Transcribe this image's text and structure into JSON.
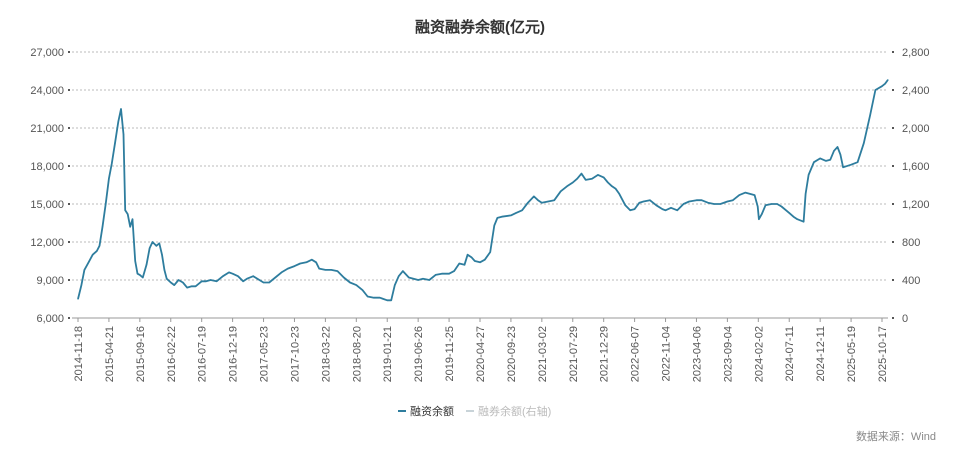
{
  "chart_data": {
    "type": "line",
    "title": "融资融券余额(亿元)",
    "source": "数据来源：Wind",
    "grid": true,
    "legend_position": "bottom",
    "x_ticks": [
      "2014-11-18",
      "2015-04-21",
      "2015-09-16",
      "2016-02-22",
      "2016-07-19",
      "2016-12-19",
      "2017-05-23",
      "2017-10-23",
      "2018-03-22",
      "2018-08-20",
      "2019-01-21",
      "2019-06-26",
      "2019-11-25",
      "2020-04-27",
      "2020-09-23",
      "2021-03-02",
      "2021-07-29",
      "2021-12-29",
      "2022-06-07",
      "2022-11-04",
      "2023-04-06",
      "2023-09-04",
      "2024-02-02",
      "2024-07-11",
      "2024-12-11",
      "2025-05-19",
      "2025-10-17"
    ],
    "y_left": {
      "ylim": [
        6000,
        27000
      ],
      "ticks": [
        "6,000",
        "9,000",
        "12,000",
        "15,000",
        "18,000",
        "21,000",
        "24,000",
        "27,000"
      ]
    },
    "y_right": {
      "ylim": [
        0,
        2800
      ],
      "ticks": [
        "0",
        "400",
        "800",
        "1,200",
        "1,600",
        "2,000",
        "2,400",
        "2,800"
      ]
    },
    "series": [
      {
        "name": "融资余额",
        "axis": "left",
        "color": "#2e7d9e",
        "visible": true,
        "values": [
          [
            "2014-11-18",
            7500
          ],
          [
            "2014-12-05",
            8600
          ],
          [
            "2014-12-20",
            9800
          ],
          [
            "2015-01-10",
            10400
          ],
          [
            "2015-01-30",
            11000
          ],
          [
            "2015-02-20",
            11300
          ],
          [
            "2015-03-05",
            11700
          ],
          [
            "2015-03-20",
            13200
          ],
          [
            "2015-04-05",
            15000
          ],
          [
            "2015-04-21",
            17000
          ],
          [
            "2015-05-05",
            18200
          ],
          [
            "2015-05-20",
            19800
          ],
          [
            "2015-06-05",
            21500
          ],
          [
            "2015-06-18",
            22500
          ],
          [
            "2015-06-30",
            20500
          ],
          [
            "2015-07-08",
            14500
          ],
          [
            "2015-07-20",
            14200
          ],
          [
            "2015-08-01",
            13200
          ],
          [
            "2015-08-12",
            13800
          ],
          [
            "2015-08-25",
            10500
          ],
          [
            "2015-09-05",
            9500
          ],
          [
            "2015-09-16",
            9400
          ],
          [
            "2015-10-01",
            9200
          ],
          [
            "2015-10-20",
            10200
          ],
          [
            "2015-11-05",
            11500
          ],
          [
            "2015-11-20",
            12000
          ],
          [
            "2015-12-10",
            11700
          ],
          [
            "2015-12-25",
            11900
          ],
          [
            "2016-01-08",
            11000
          ],
          [
            "2016-01-20",
            9800
          ],
          [
            "2016-02-01",
            9100
          ],
          [
            "2016-02-22",
            8800
          ],
          [
            "2016-03-10",
            8600
          ],
          [
            "2016-03-30",
            9000
          ],
          [
            "2016-04-20",
            8800
          ],
          [
            "2016-05-10",
            8400
          ],
          [
            "2016-06-01",
            8500
          ],
          [
            "2016-06-20",
            8500
          ],
          [
            "2016-07-19",
            8900
          ],
          [
            "2016-08-10",
            8900
          ],
          [
            "2016-09-01",
            9000
          ],
          [
            "2016-10-01",
            8900
          ],
          [
            "2016-11-01",
            9300
          ],
          [
            "2016-12-01",
            9600
          ],
          [
            "2016-12-19",
            9500
          ],
          [
            "2017-01-15",
            9300
          ],
          [
            "2017-02-10",
            8900
          ],
          [
            "2017-03-01",
            9100
          ],
          [
            "2017-04-01",
            9300
          ],
          [
            "2017-05-23",
            8800
          ],
          [
            "2017-06-20",
            8800
          ],
          [
            "2017-07-20",
            9200
          ],
          [
            "2017-08-20",
            9600
          ],
          [
            "2017-09-20",
            9900
          ],
          [
            "2017-10-23",
            10100
          ],
          [
            "2017-11-20",
            10300
          ],
          [
            "2017-12-20",
            10400
          ],
          [
            "2018-01-15",
            10600
          ],
          [
            "2018-02-05",
            10400
          ],
          [
            "2018-02-20",
            9900
          ],
          [
            "2018-03-22",
            9800
          ],
          [
            "2018-04-20",
            9800
          ],
          [
            "2018-05-20",
            9700
          ],
          [
            "2018-06-20",
            9200
          ],
          [
            "2018-07-20",
            8800
          ],
          [
            "2018-08-20",
            8600
          ],
          [
            "2018-09-20",
            8200
          ],
          [
            "2018-10-15",
            7700
          ],
          [
            "2018-11-15",
            7600
          ],
          [
            "2018-12-15",
            7600
          ],
          [
            "2019-01-21",
            7400
          ],
          [
            "2019-02-10",
            7400
          ],
          [
            "2019-02-28",
            8600
          ],
          [
            "2019-03-20",
            9300
          ],
          [
            "2019-04-10",
            9700
          ],
          [
            "2019-05-10",
            9200
          ],
          [
            "2019-06-26",
            9000
          ],
          [
            "2019-07-20",
            9100
          ],
          [
            "2019-08-20",
            9000
          ],
          [
            "2019-09-20",
            9400
          ],
          [
            "2019-10-20",
            9500
          ],
          [
            "2019-11-25",
            9500
          ],
          [
            "2019-12-20",
            9700
          ],
          [
            "2020-01-15",
            10300
          ],
          [
            "2020-02-10",
            10200
          ],
          [
            "2020-02-25",
            11000
          ],
          [
            "2020-03-15",
            10800
          ],
          [
            "2020-04-01",
            10500
          ],
          [
            "2020-04-27",
            10400
          ],
          [
            "2020-05-20",
            10600
          ],
          [
            "2020-06-15",
            11200
          ],
          [
            "2020-07-05",
            13300
          ],
          [
            "2020-07-20",
            13900
          ],
          [
            "2020-08-10",
            14000
          ],
          [
            "2020-09-23",
            14100
          ],
          [
            "2020-10-20",
            14300
          ],
          [
            "2020-11-20",
            14500
          ],
          [
            "2020-12-20",
            15100
          ],
          [
            "2021-01-20",
            15600
          ],
          [
            "2021-02-10",
            15300
          ],
          [
            "2021-03-02",
            15100
          ],
          [
            "2021-04-01",
            15200
          ],
          [
            "2021-05-01",
            15300
          ],
          [
            "2021-06-01",
            16000
          ],
          [
            "2021-07-01",
            16400
          ],
          [
            "2021-07-29",
            16700
          ],
          [
            "2021-08-20",
            17000
          ],
          [
            "2021-09-10",
            17400
          ],
          [
            "2021-10-01",
            16900
          ],
          [
            "2021-11-01",
            17000
          ],
          [
            "2021-12-01",
            17300
          ],
          [
            "2021-12-29",
            17100
          ],
          [
            "2022-01-20",
            16700
          ],
          [
            "2022-02-10",
            16400
          ],
          [
            "2022-03-01",
            16200
          ],
          [
            "2022-03-20",
            15800
          ],
          [
            "2022-04-20",
            14900
          ],
          [
            "2022-05-15",
            14500
          ],
          [
            "2022-06-07",
            14600
          ],
          [
            "2022-06-30",
            15100
          ],
          [
            "2022-07-20",
            15200
          ],
          [
            "2022-08-20",
            15300
          ],
          [
            "2022-09-20",
            14900
          ],
          [
            "2022-10-20",
            14600
          ],
          [
            "2022-11-04",
            14500
          ],
          [
            "2022-12-01",
            14700
          ],
          [
            "2023-01-01",
            14500
          ],
          [
            "2023-02-01",
            15000
          ],
          [
            "2023-03-01",
            15200
          ],
          [
            "2023-04-06",
            15300
          ],
          [
            "2023-05-01",
            15300
          ],
          [
            "2023-06-01",
            15100
          ],
          [
            "2023-07-01",
            15000
          ],
          [
            "2023-08-01",
            15000
          ],
          [
            "2023-09-04",
            15200
          ],
          [
            "2023-10-01",
            15300
          ],
          [
            "2023-11-01",
            15700
          ],
          [
            "2023-12-01",
            15900
          ],
          [
            "2024-01-15",
            15700
          ],
          [
            "2024-01-30",
            14800
          ],
          [
            "2024-02-05",
            13800
          ],
          [
            "2024-02-20",
            14200
          ],
          [
            "2024-03-10",
            14900
          ],
          [
            "2024-04-10",
            15000
          ],
          [
            "2024-05-10",
            15000
          ],
          [
            "2024-06-01",
            14800
          ],
          [
            "2024-07-11",
            14300
          ],
          [
            "2024-08-01",
            14000
          ],
          [
            "2024-08-20",
            13800
          ],
          [
            "2024-09-20",
            13600
          ],
          [
            "2024-09-30",
            15800
          ],
          [
            "2024-10-15",
            17300
          ],
          [
            "2024-11-10",
            18300
          ],
          [
            "2024-12-11",
            18600
          ],
          [
            "2025-01-10",
            18400
          ],
          [
            "2025-02-01",
            18500
          ],
          [
            "2025-02-20",
            19200
          ],
          [
            "2025-03-10",
            19500
          ],
          [
            "2025-03-25",
            18900
          ],
          [
            "2025-04-08",
            17900
          ],
          [
            "2025-05-19",
            18100
          ],
          [
            "2025-06-20",
            18300
          ],
          [
            "2025-07-20",
            19800
          ],
          [
            "2025-08-20",
            22000
          ],
          [
            "2025-09-15",
            24000
          ],
          [
            "2025-10-17",
            24300
          ],
          [
            "2025-11-01",
            24500
          ],
          [
            "2025-11-15",
            24800
          ]
        ]
      },
      {
        "name": "融券余额(右轴)",
        "axis": "right",
        "color": "#c8d3d8",
        "visible": false,
        "values": []
      }
    ]
  }
}
